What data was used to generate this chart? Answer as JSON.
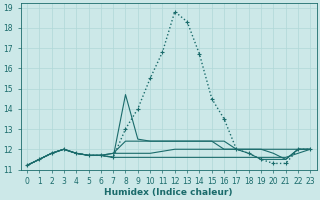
{
  "xlabel": "Humidex (Indice chaleur)",
  "xlim": [
    -0.5,
    23.5
  ],
  "ylim": [
    11,
    19.2
  ],
  "xticks": [
    0,
    1,
    2,
    3,
    4,
    5,
    6,
    7,
    8,
    9,
    10,
    11,
    12,
    13,
    14,
    15,
    16,
    17,
    18,
    19,
    20,
    21,
    22,
    23
  ],
  "yticks": [
    11,
    12,
    13,
    14,
    15,
    16,
    17,
    18,
    19
  ],
  "bg_color": "#cce8e8",
  "line_color": "#1a6b6b",
  "grid_color": "#b0d8d8",
  "main_curve": {
    "x": [
      0,
      1,
      2,
      3,
      4,
      5,
      6,
      7,
      8,
      9,
      10,
      11,
      12,
      13,
      14,
      15,
      16,
      17,
      18,
      19,
      20,
      21,
      22,
      23
    ],
    "y": [
      11.2,
      11.5,
      11.8,
      12.0,
      11.8,
      11.7,
      11.7,
      11.6,
      13.0,
      14.0,
      15.5,
      16.8,
      18.8,
      18.3,
      16.7,
      14.5,
      13.5,
      12.0,
      11.8,
      11.5,
      11.3,
      11.3,
      12.0,
      12.0
    ]
  },
  "flat_lines": [
    {
      "x": [
        0,
        1,
        2,
        3,
        4,
        5,
        6,
        7,
        8,
        9,
        10,
        11,
        12,
        13,
        14,
        15,
        16,
        17,
        18,
        19,
        20,
        21,
        22,
        23
      ],
      "y": [
        11.2,
        11.5,
        11.8,
        12.0,
        11.8,
        11.7,
        11.7,
        11.6,
        11.6,
        11.6,
        11.6,
        11.6,
        11.6,
        11.6,
        11.6,
        11.6,
        11.6,
        11.6,
        11.6,
        11.6,
        11.6,
        11.6,
        11.8,
        12.0
      ]
    },
    {
      "x": [
        0,
        1,
        2,
        3,
        4,
        5,
        6,
        7,
        8,
        9,
        10,
        11,
        12,
        13,
        14,
        15,
        16,
        17,
        18,
        19,
        20,
        21,
        22,
        23
      ],
      "y": [
        11.2,
        11.5,
        11.8,
        12.0,
        11.8,
        11.7,
        11.7,
        11.8,
        11.8,
        11.8,
        11.8,
        11.9,
        12.0,
        12.0,
        12.0,
        12.0,
        12.0,
        12.0,
        12.0,
        12.0,
        11.8,
        11.5,
        12.0,
        12.0
      ]
    },
    {
      "x": [
        0,
        1,
        2,
        3,
        4,
        5,
        6,
        7,
        8,
        9,
        10,
        11,
        12,
        13,
        14,
        15,
        16,
        17,
        18,
        19,
        20,
        21,
        22,
        23
      ],
      "y": [
        11.2,
        11.5,
        11.8,
        12.0,
        11.8,
        11.7,
        11.7,
        11.8,
        12.4,
        12.4,
        12.4,
        12.4,
        12.4,
        12.4,
        12.4,
        12.4,
        12.4,
        12.0,
        12.0,
        12.0,
        12.0,
        12.0,
        12.0,
        12.0
      ]
    },
    {
      "x": [
        0,
        1,
        2,
        3,
        4,
        5,
        6,
        7,
        8,
        9,
        10,
        11,
        12,
        13,
        14,
        15,
        16,
        17,
        18,
        19,
        20,
        21,
        22,
        23
      ],
      "y": [
        11.2,
        11.5,
        11.8,
        12.0,
        11.8,
        11.7,
        11.7,
        11.6,
        14.7,
        12.5,
        12.4,
        12.4,
        12.4,
        12.4,
        12.4,
        12.4,
        12.0,
        12.0,
        11.8,
        11.5,
        11.5,
        11.5,
        12.0,
        12.0
      ]
    }
  ]
}
